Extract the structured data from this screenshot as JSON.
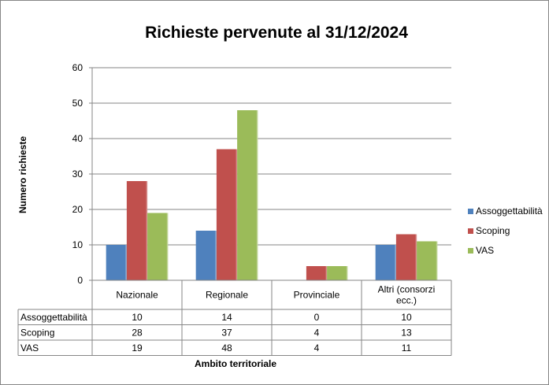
{
  "chart_data": {
    "type": "bar",
    "title": "Richieste pervenute al 31/12/2024",
    "xlabel": "Ambito territoriale",
    "ylabel": "Numero richieste",
    "categories": [
      "Nazionale",
      "Regionale",
      "Provinciale",
      "Altri (consorzi ecc.)"
    ],
    "category_lines": [
      [
        "Nazionale"
      ],
      [
        "Regionale"
      ],
      [
        "Provinciale"
      ],
      [
        "Altri (consorzi",
        "ecc.)"
      ]
    ],
    "series": [
      {
        "name": "Assoggettabilità",
        "color": "#4f81bd",
        "values": [
          10,
          14,
          0,
          10
        ],
        "cells": [
          "10",
          "14",
          "0",
          "10"
        ]
      },
      {
        "name": "Scoping",
        "color": "#c0504d",
        "values": [
          28,
          37,
          4,
          13
        ],
        "cells": [
          "28",
          "37",
          "4",
          "13"
        ]
      },
      {
        "name": "VAS",
        "color": "#9bbb59",
        "values": [
          19,
          48,
          4,
          11
        ],
        "cells": [
          "19",
          "48",
          "4",
          "11"
        ]
      }
    ],
    "ylim": [
      0,
      60
    ],
    "yticks": [
      0,
      10,
      20,
      30,
      40,
      50,
      60
    ],
    "ytick_labels": [
      "0",
      "10",
      "20",
      "30",
      "40",
      "50",
      "60"
    ],
    "grid": true,
    "legend": "right",
    "data_table": true
  }
}
